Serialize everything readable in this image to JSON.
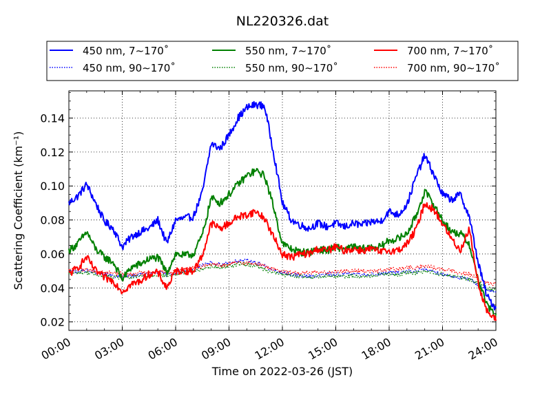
{
  "chart_data": {
    "type": "line",
    "title": "NL220326.dat",
    "xlabel": "Time on 2022-03-26 (JST)",
    "ylabel": "Scattering Coefficient (km⁻¹)",
    "xlim": [
      "00:00",
      "24:00"
    ],
    "ylim": [
      0.015,
      0.156
    ],
    "grid": true,
    "legend_position": "top (above plot)",
    "x_ticks": [
      "00:00",
      "03:00",
      "06:00",
      "09:00",
      "12:00",
      "15:00",
      "18:00",
      "21:00",
      "24:00"
    ],
    "y_ticks": [
      "0.02",
      "0.04",
      "0.06",
      "0.08",
      "0.10",
      "0.12",
      "0.14"
    ],
    "x_hours": [
      0.0,
      0.5,
      1.0,
      1.5,
      2.0,
      2.5,
      3.0,
      3.5,
      4.0,
      4.5,
      5.0,
      5.5,
      6.0,
      6.5,
      7.0,
      7.5,
      8.0,
      8.5,
      9.0,
      9.5,
      10.0,
      10.5,
      11.0,
      11.5,
      12.0,
      12.5,
      13.0,
      13.5,
      14.0,
      14.5,
      15.0,
      15.5,
      16.0,
      16.5,
      17.0,
      17.5,
      18.0,
      18.5,
      19.0,
      19.5,
      20.0,
      20.5,
      21.0,
      21.5,
      22.0,
      22.5,
      23.0,
      23.5,
      24.0
    ],
    "series": [
      {
        "name": "450 nm, 7∼170˚",
        "color": "#0000ff",
        "style": "solid",
        "values": [
          0.09,
          0.094,
          0.101,
          0.09,
          0.079,
          0.075,
          0.064,
          0.07,
          0.073,
          0.075,
          0.08,
          0.066,
          0.08,
          0.081,
          0.082,
          0.096,
          0.125,
          0.122,
          0.13,
          0.14,
          0.146,
          0.148,
          0.147,
          0.12,
          0.09,
          0.08,
          0.077,
          0.075,
          0.078,
          0.076,
          0.078,
          0.076,
          0.078,
          0.077,
          0.079,
          0.079,
          0.085,
          0.083,
          0.089,
          0.105,
          0.118,
          0.107,
          0.095,
          0.092,
          0.095,
          0.082,
          0.055,
          0.035,
          0.028
        ]
      },
      {
        "name": "550 nm, 7∼170˚",
        "color": "#008000",
        "style": "solid",
        "values": [
          0.062,
          0.066,
          0.073,
          0.063,
          0.058,
          0.055,
          0.045,
          0.052,
          0.054,
          0.057,
          0.058,
          0.049,
          0.06,
          0.059,
          0.06,
          0.071,
          0.093,
          0.09,
          0.095,
          0.101,
          0.106,
          0.109,
          0.106,
          0.088,
          0.066,
          0.063,
          0.061,
          0.061,
          0.063,
          0.062,
          0.064,
          0.063,
          0.064,
          0.063,
          0.064,
          0.064,
          0.068,
          0.069,
          0.072,
          0.082,
          0.097,
          0.089,
          0.08,
          0.073,
          0.072,
          0.066,
          0.045,
          0.03,
          0.023
        ]
      },
      {
        "name": "700 nm, 7∼170˚",
        "color": "#ff0000",
        "style": "solid",
        "values": [
          0.048,
          0.052,
          0.058,
          0.05,
          0.046,
          0.044,
          0.038,
          0.042,
          0.044,
          0.048,
          0.049,
          0.04,
          0.05,
          0.05,
          0.05,
          0.059,
          0.078,
          0.075,
          0.078,
          0.082,
          0.083,
          0.085,
          0.081,
          0.07,
          0.06,
          0.058,
          0.06,
          0.06,
          0.063,
          0.062,
          0.064,
          0.062,
          0.063,
          0.062,
          0.063,
          0.061,
          0.062,
          0.062,
          0.066,
          0.074,
          0.09,
          0.086,
          0.078,
          0.069,
          0.062,
          0.075,
          0.043,
          0.026,
          0.021
        ]
      },
      {
        "name": "450 nm, 90∼170˚",
        "color": "#0000ff",
        "style": "dotted",
        "values": [
          0.049,
          0.05,
          0.05,
          0.049,
          0.048,
          0.047,
          0.047,
          0.047,
          0.048,
          0.048,
          0.049,
          0.048,
          0.049,
          0.05,
          0.051,
          0.053,
          0.055,
          0.054,
          0.055,
          0.056,
          0.056,
          0.055,
          0.053,
          0.05,
          0.049,
          0.048,
          0.047,
          0.047,
          0.047,
          0.048,
          0.048,
          0.048,
          0.048,
          0.048,
          0.048,
          0.048,
          0.049,
          0.049,
          0.05,
          0.05,
          0.051,
          0.05,
          0.048,
          0.047,
          0.046,
          0.045,
          0.042,
          0.039,
          0.037
        ]
      },
      {
        "name": "550 nm, 90∼170˚",
        "color": "#008000",
        "style": "dotted",
        "values": [
          0.048,
          0.049,
          0.049,
          0.048,
          0.047,
          0.046,
          0.046,
          0.046,
          0.047,
          0.047,
          0.048,
          0.047,
          0.048,
          0.049,
          0.05,
          0.051,
          0.053,
          0.052,
          0.053,
          0.054,
          0.054,
          0.053,
          0.051,
          0.049,
          0.048,
          0.047,
          0.047,
          0.046,
          0.047,
          0.047,
          0.047,
          0.047,
          0.047,
          0.047,
          0.047,
          0.048,
          0.048,
          0.048,
          0.049,
          0.049,
          0.05,
          0.049,
          0.048,
          0.047,
          0.046,
          0.045,
          0.043,
          0.04,
          0.039
        ]
      },
      {
        "name": "700 nm, 90∼170˚",
        "color": "#ff0000",
        "style": "dotted",
        "values": [
          0.05,
          0.051,
          0.051,
          0.05,
          0.049,
          0.049,
          0.048,
          0.048,
          0.049,
          0.049,
          0.05,
          0.049,
          0.05,
          0.051,
          0.052,
          0.053,
          0.054,
          0.053,
          0.054,
          0.055,
          0.055,
          0.054,
          0.053,
          0.051,
          0.05,
          0.049,
          0.049,
          0.049,
          0.049,
          0.049,
          0.05,
          0.05,
          0.05,
          0.05,
          0.05,
          0.05,
          0.051,
          0.051,
          0.052,
          0.052,
          0.053,
          0.052,
          0.051,
          0.05,
          0.049,
          0.048,
          0.045,
          0.043,
          0.042
        ]
      }
    ]
  }
}
